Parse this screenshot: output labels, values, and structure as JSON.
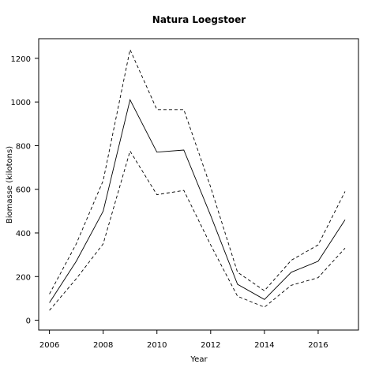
{
  "chart_data": {
    "type": "line",
    "title": "Natura Loegstoer",
    "xlabel": "Year",
    "ylabel": "Biomasse (kilotons)",
    "xlim": [
      2005.6,
      2017.5
    ],
    "ylim": [
      -45,
      1290
    ],
    "x_ticks": [
      2006,
      2008,
      2010,
      2012,
      2014,
      2016
    ],
    "y_ticks": [
      0,
      200,
      400,
      600,
      800,
      1000,
      1200
    ],
    "grid": false,
    "legend": "none",
    "x": [
      2006,
      2007,
      2008,
      2009,
      2010,
      2011,
      2012,
      2013,
      2014,
      2015,
      2016,
      2017
    ],
    "series": [
      {
        "role": "estimate",
        "style": "solid",
        "values": [
          80,
          270,
          500,
          1010,
          770,
          780,
          480,
          165,
          95,
          220,
          270,
          460
        ]
      },
      {
        "role": "upper",
        "style": "dashed",
        "values": [
          120,
          350,
          640,
          1240,
          965,
          965,
          610,
          220,
          135,
          275,
          345,
          590
        ]
      },
      {
        "role": "lower",
        "style": "dashed",
        "values": [
          45,
          190,
          350,
          775,
          575,
          595,
          345,
          110,
          60,
          160,
          195,
          330
        ]
      }
    ]
  }
}
